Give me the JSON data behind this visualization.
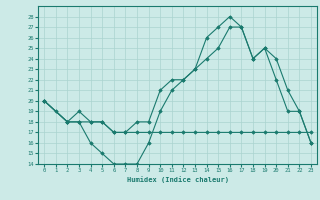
{
  "xlabel": "Humidex (Indice chaleur)",
  "bg_color": "#cceae7",
  "line_color": "#1a7a6e",
  "grid_color": "#aad4d0",
  "xlim": [
    -0.5,
    23.5
  ],
  "ylim": [
    14,
    29
  ],
  "yticks": [
    14,
    15,
    16,
    17,
    18,
    19,
    20,
    21,
    22,
    23,
    24,
    25,
    26,
    27,
    28
  ],
  "xticks": [
    0,
    1,
    2,
    3,
    4,
    5,
    6,
    7,
    8,
    9,
    10,
    11,
    12,
    13,
    14,
    15,
    16,
    17,
    18,
    19,
    20,
    21,
    22,
    23
  ],
  "line1_x": [
    0,
    1,
    2,
    3,
    4,
    5,
    6,
    7,
    8,
    9,
    10,
    11,
    12,
    13,
    14,
    15,
    16,
    17,
    18,
    19,
    20,
    21,
    22,
    23
  ],
  "line1_y": [
    20,
    19,
    18,
    18,
    16,
    15,
    14,
    14,
    14,
    16,
    19,
    21,
    22,
    23,
    26,
    27,
    28,
    27,
    24,
    25,
    22,
    19,
    19,
    16
  ],
  "line2_x": [
    0,
    2,
    3,
    4,
    5,
    6,
    7,
    8,
    9,
    10,
    11,
    12,
    13,
    14,
    15,
    16,
    17,
    18,
    19,
    20,
    21,
    22,
    23
  ],
  "line2_y": [
    20,
    18,
    19,
    18,
    18,
    17,
    17,
    18,
    18,
    21,
    22,
    22,
    23,
    24,
    25,
    27,
    27,
    24,
    25,
    24,
    21,
    19,
    16
  ],
  "line3_x": [
    0,
    2,
    3,
    4,
    5,
    6,
    7,
    8,
    9,
    10,
    11,
    12,
    13,
    14,
    15,
    16,
    17,
    18,
    19,
    20,
    21,
    22,
    23
  ],
  "line3_y": [
    20,
    18,
    18,
    18,
    18,
    17,
    17,
    17,
    17,
    17,
    17,
    17,
    17,
    17,
    17,
    17,
    17,
    17,
    17,
    17,
    17,
    17,
    17
  ]
}
